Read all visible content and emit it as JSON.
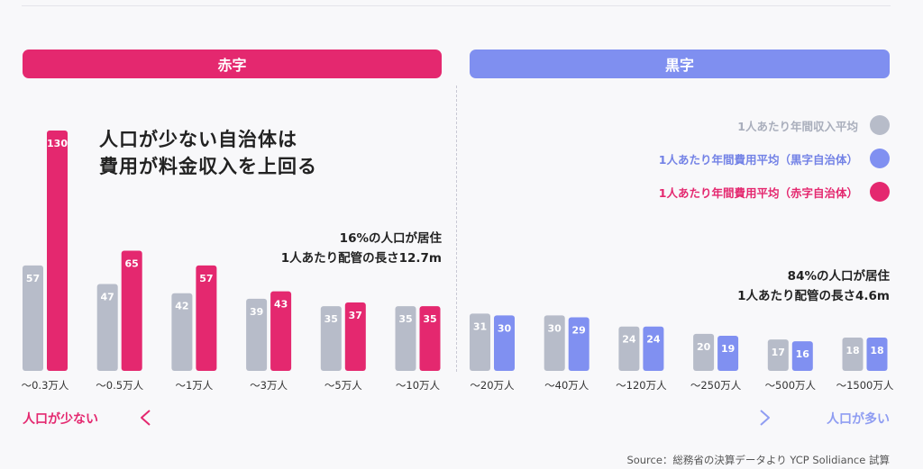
{
  "sections": {
    "deficit_label": "赤字",
    "surplus_label": "黒字"
  },
  "headline": {
    "line1": "人口が少ない自治体は",
    "line2": "費用が料金収入を上回る"
  },
  "notes": {
    "deficit": {
      "line1": "16%の人口が居住",
      "line2": "1人あたり配管の長さ12.7m"
    },
    "surplus": {
      "line1": "84%の人口が居住",
      "line2": "1人あたり配管の長さ4.6m"
    }
  },
  "legend": [
    {
      "label": "1人あたり年間収入平均",
      "color": "#b7bcc9"
    },
    {
      "label": "1人あたり年間費用平均（黒字自治体）",
      "color": "#8090f1"
    },
    {
      "label": "1人あたり年間費用平均（赤字自治体）",
      "color": "#e4286f"
    }
  ],
  "axis": {
    "left_label": "人口が少ない",
    "right_label": "人口が多い"
  },
  "source": "Source：総務省の決算データより YCP Solidiance 試算",
  "colors": {
    "income": "#b7bcc9",
    "cost_surplus": "#8090f1",
    "cost_deficit": "#e4286f"
  },
  "chart_data": {
    "type": "bar",
    "categories": [
      "〜0.3万人",
      "〜0.5万人",
      "〜1万人",
      "〜3万人",
      "〜5万人",
      "〜10万人",
      "〜20万人",
      "〜40万人",
      "〜120万人",
      "〜250万人",
      "〜500万人",
      "〜1500万人"
    ],
    "series": [
      {
        "name": "1人あたり年間収入平均",
        "values": [
          57,
          47,
          42,
          39,
          35,
          35,
          31,
          30,
          24,
          20,
          17,
          18
        ]
      },
      {
        "name": "1人あたり年間費用平均（赤字自治体）",
        "values": [
          130,
          65,
          57,
          43,
          37,
          35,
          null,
          null,
          null,
          null,
          null,
          null
        ]
      },
      {
        "name": "1人あたり年間費用平均（黒字自治体）",
        "values": [
          null,
          null,
          null,
          null,
          null,
          null,
          30,
          29,
          24,
          19,
          16,
          18
        ]
      }
    ],
    "data_labels": true,
    "legend_position": "top-right"
  }
}
